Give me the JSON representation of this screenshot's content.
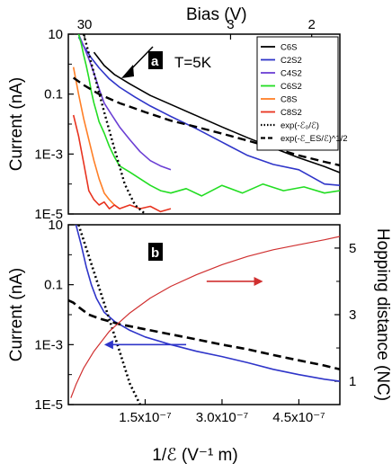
{
  "chart_data": [
    {
      "panel": "a",
      "type": "line",
      "xlabel_top": "Bias (V)",
      "top_ticks": [
        "30",
        "3",
        "2"
      ],
      "top_tick_values": [
        30,
        3,
        2
      ],
      "ylabel": "Current (nA)",
      "y_ticks": [
        "10",
        "0.1",
        "1E-3",
        "1E-5"
      ],
      "y_scale": "log",
      "ylim": [
        1e-05,
        10
      ],
      "x_domain": [
        0,
        5.3e-07
      ],
      "annotation": "T=5K",
      "panel_label": "a",
      "series": [
        {
          "name": "C6S",
          "color": "#000000",
          "dash": "solid",
          "x": [
            5e-08,
            7e-08,
            9e-08,
            1.2e-07,
            1.6e-07,
            2e-07,
            2.5e-07,
            3e-07,
            3.5e-07,
            4e-07,
            4.5e-07,
            5e-07,
            5.3e-07
          ],
          "y": [
            2.5,
            0.9,
            0.45,
            0.22,
            0.09,
            0.045,
            0.019,
            0.008,
            0.0035,
            0.0016,
            0.00075,
            0.00038,
            0.00024
          ]
        },
        {
          "name": "C2S2",
          "color": "#2f35c9",
          "dash": "solid",
          "x": [
            2e-08,
            3e-08,
            4.5e-08,
            6e-08,
            8e-08,
            1e-07,
            1.3e-07,
            1.6e-07,
            2e-07,
            2.5e-07,
            3e-07,
            3.5e-07,
            4e-07,
            4.5e-07,
            5e-07,
            5.3e-07
          ],
          "y": [
            8,
            4,
            1.6,
            0.75,
            0.32,
            0.17,
            0.08,
            0.04,
            0.018,
            0.007,
            0.0025,
            0.0009,
            0.00045,
            0.0003,
            0.0001,
            9e-05
          ]
        },
        {
          "name": "C4S2",
          "color": "#6b3fd4",
          "dash": "solid",
          "x": [
            2e-08,
            3e-08,
            4e-08,
            5e-08,
            6e-08,
            7e-08,
            8.5e-08,
            1e-07,
            1.2e-07,
            1.4e-07,
            1.6e-07,
            1.8e-07,
            2e-07
          ],
          "y": [
            10,
            4,
            1.5,
            0.5,
            0.15,
            0.05,
            0.02,
            0.008,
            0.003,
            0.0012,
            0.0006,
            0.0004,
            0.0003
          ]
        },
        {
          "name": "C6S2",
          "color": "#22dd22",
          "dash": "solid",
          "x": [
            2e-08,
            2.5e-08,
            3e-08,
            3.5e-08,
            4e-08,
            4.5e-08,
            5e-08,
            5.5e-08,
            6e-08,
            7e-08,
            8e-08,
            9e-08,
            1e-07,
            1.2e-07,
            1.4e-07,
            1.6e-07,
            1.8e-07,
            2e-07,
            2.3e-07,
            2.6e-07,
            3e-07,
            3.4e-07,
            3.8e-07,
            4.2e-07,
            4.6e-07,
            5e-07,
            5.3e-07
          ],
          "y": [
            10,
            5,
            2,
            0.9,
            0.35,
            0.12,
            0.05,
            0.025,
            0.012,
            0.005,
            0.0018,
            0.0008,
            0.0004,
            0.00025,
            0.00015,
            9e-05,
            6e-05,
            5e-05,
            7e-05,
            4e-05,
            9e-05,
            5e-05,
            0.0001,
            6e-05,
            8e-05,
            5e-05,
            6e-05
          ]
        },
        {
          "name": "C8S",
          "color": "#ff7f27",
          "dash": "solid",
          "x": [
            1e-08,
            2e-08,
            3e-08,
            4e-08,
            5e-08,
            6e-08,
            7e-08,
            8e-08,
            9e-08,
            1e-07
          ],
          "y": [
            0.8,
            0.1,
            0.015,
            0.003,
            0.0006,
            0.00015,
            5e-05,
            3e-05,
            2e-05,
            1.5e-05
          ]
        },
        {
          "name": "C8S2",
          "color": "#e8331f",
          "dash": "solid",
          "x": [
            1e-08,
            2e-08,
            3e-08,
            4e-08,
            5e-08,
            6e-08,
            7e-08,
            8e-08,
            9e-08,
            1e-07,
            1.2e-07,
            1.4e-07,
            1.6e-07,
            1.8e-07,
            2e-07
          ],
          "y": [
            0.02,
            0.004,
            0.0005,
            6e-05,
            3e-05,
            2e-05,
            2.5e-05,
            1.5e-05,
            2e-05,
            1.5e-05,
            2e-05,
            1.5e-05,
            1.8e-05,
            1.2e-05,
            1.5e-05
          ]
        },
        {
          "name": "exp(-ℰ₀/ℰ)",
          "color": "#000000",
          "dash": "dotted",
          "x": [
            3e-08,
            5e-08,
            7e-08,
            9e-08,
            1.1e-07,
            1.3e-07,
            1.5e-07
          ],
          "y": [
            10,
            0.5,
            0.025,
            0.0015,
            0.0001,
            2e-05,
            1e-05
          ]
        },
        {
          "name": "exp(-ℰ_ES/ℰ)^1/2",
          "color": "#000000",
          "dash": "dashed",
          "x": [
            1e-08,
            3e-08,
            6e-08,
            1e-07,
            1.5e-07,
            2e-07,
            2.5e-07,
            3e-07,
            3.5e-07,
            4e-07,
            4.5e-07,
            5e-07,
            5.3e-07
          ],
          "y": [
            0.35,
            0.2,
            0.1,
            0.05,
            0.025,
            0.013,
            0.008,
            0.0048,
            0.0028,
            0.0016,
            0.0009,
            0.00055,
            0.00042
          ]
        }
      ],
      "noise_series_note": ""
    },
    {
      "panel": "b",
      "type": "line",
      "xlabel": "1/ℰ (V⁻¹ m)",
      "x_ticks": [
        "1.5x10⁻⁷",
        "3.0x10⁻⁷",
        "4.5x10⁻⁷"
      ],
      "x_tick_values": [
        1.5e-07,
        3e-07,
        4.5e-07
      ],
      "xlim": [
        0,
        5.3e-07
      ],
      "ylabel": "Current (nA)",
      "y_ticks": [
        "10",
        "0.1",
        "1E-3",
        "1E-5"
      ],
      "y_scale": "log",
      "ylim": [
        1e-05,
        10
      ],
      "ylabel_right": "Hopping distance (NC)",
      "right_ticks": [
        "1",
        "3",
        "5"
      ],
      "right_tick_values": [
        1,
        3,
        5
      ],
      "right_ylim": [
        0.3,
        5.7
      ],
      "panel_label": "b",
      "series": [
        {
          "color": "#2f35c9",
          "dash": "solid",
          "axis": "left",
          "x": [
            1.5e-08,
            2.5e-08,
            3.5e-08,
            4.5e-08,
            5.5e-08,
            7e-08,
            9e-08,
            1.2e-07,
            1.5e-07,
            2e-07,
            2.5e-07,
            3e-07,
            3.5e-07,
            4e-07,
            4.5e-07,
            5e-07,
            5.3e-07
          ],
          "y": [
            10,
            2.2,
            0.4,
            0.1,
            0.035,
            0.012,
            0.006,
            0.003,
            0.0018,
            0.001,
            0.0006,
            0.0004,
            0.00025,
            0.00015,
            0.0001,
            7e-05,
            6e-05
          ]
        },
        {
          "color": "#000000",
          "dash": "dashed",
          "axis": "left",
          "x": [
            0,
            1e-08,
            2e-08,
            4e-08,
            6e-08,
            8e-08,
            1e-07,
            1.3e-07,
            1.6e-07,
            2e-07,
            2.5e-07,
            3e-07,
            3.5e-07,
            4e-07,
            4.5e-07,
            5e-07,
            5.3e-07
          ],
          "y": [
            0.03,
            0.025,
            0.018,
            0.01,
            0.0075,
            0.006,
            0.0048,
            0.0038,
            0.003,
            0.0022,
            0.0015,
            0.001,
            0.0007,
            0.00045,
            0.0003,
            0.0002,
            0.00015
          ]
        },
        {
          "color": "#000000",
          "dash": "dotted",
          "axis": "left",
          "x": [
            2e-08,
            4e-08,
            6e-08,
            8e-08,
            1e-07,
            1.2e-07,
            1.4e-07
          ],
          "y": [
            10,
            0.9,
            0.08,
            0.007,
            0.0006,
            5e-05,
            1e-05
          ]
        },
        {
          "color": "#d03030",
          "dash": "solid",
          "axis": "right",
          "x": [
            5e-09,
            1.5e-08,
            3e-08,
            5e-08,
            8e-08,
            1.2e-07,
            1.6e-07,
            2e-07,
            2.5e-07,
            3e-07,
            3.5e-07,
            4e-07,
            4.5e-07,
            5e-07,
            5.3e-07
          ],
          "y": [
            0.5,
            0.9,
            1.4,
            1.9,
            2.5,
            3.05,
            3.5,
            3.85,
            4.2,
            4.5,
            4.75,
            4.95,
            5.1,
            5.25,
            5.35
          ]
        }
      ],
      "arrows": [
        {
          "color": "#d03030",
          "direction": "right",
          "x_from": 2.7e-07,
          "x_to": 3.8e-07,
          "y_axis": "right",
          "y": 4.0
        },
        {
          "color": "#2f35c9",
          "direction": "left",
          "x_from": 2.3e-07,
          "x_to": 7e-08,
          "y_axis": "left",
          "y": 0.001
        }
      ]
    }
  ]
}
